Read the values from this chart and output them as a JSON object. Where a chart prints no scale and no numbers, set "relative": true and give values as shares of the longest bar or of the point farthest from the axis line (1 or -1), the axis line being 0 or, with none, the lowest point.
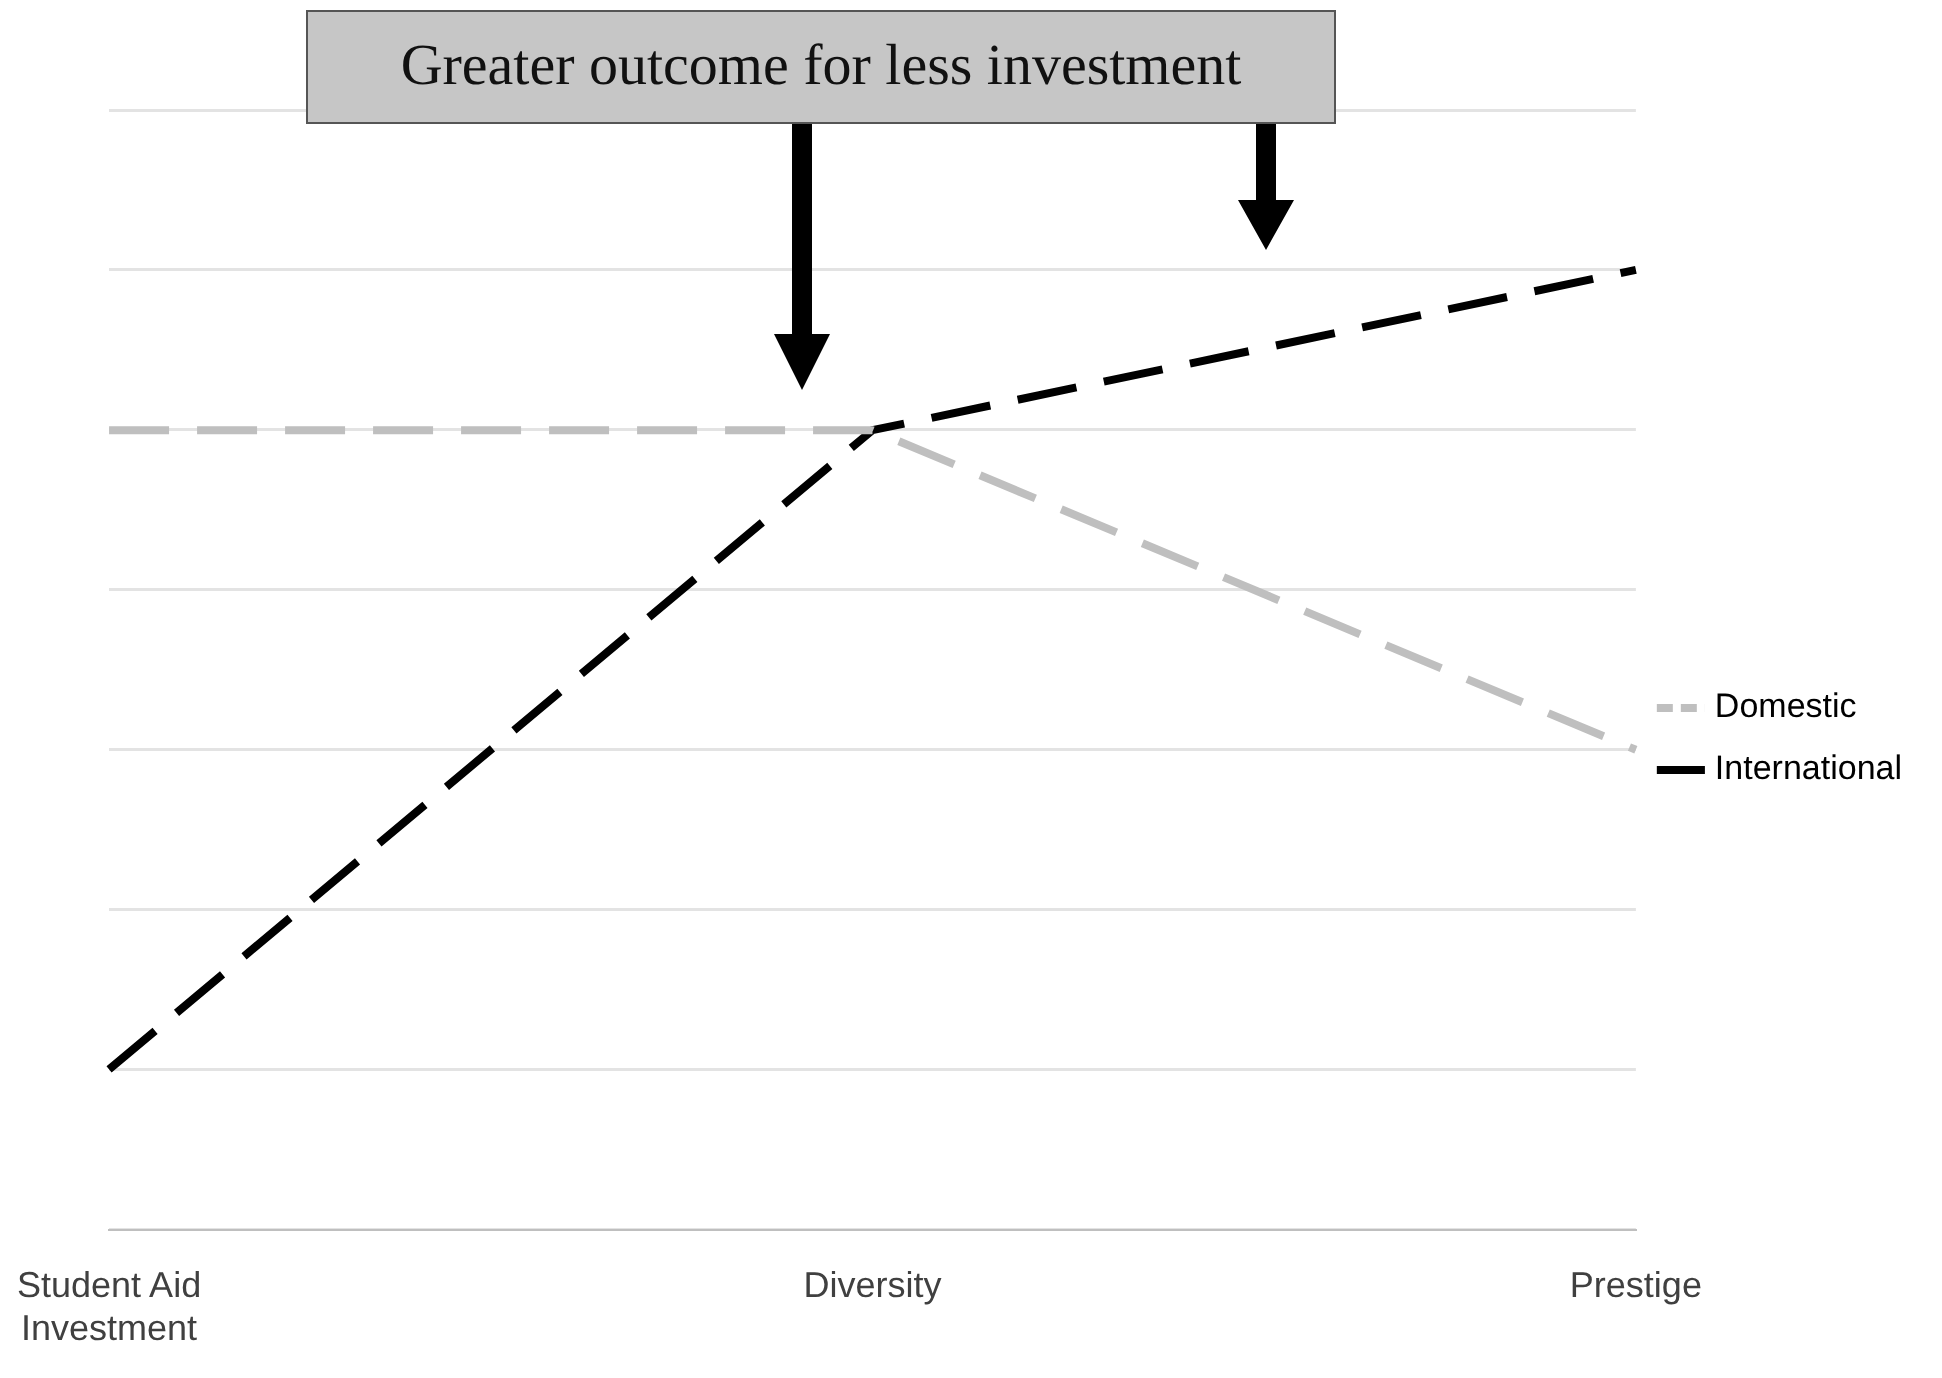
{
  "chart_data": {
    "type": "line",
    "relative": true,
    "categories": [
      "Student Aid Investment",
      "Diversity",
      "Prestige"
    ],
    "series": [
      {
        "name": "Domestic",
        "color": "#bfbfbf",
        "values": [
          0.833,
          0.833,
          0.5
        ],
        "line_style": "dashed"
      },
      {
        "name": "International",
        "color": "#000000",
        "values": [
          0.167,
          0.833,
          1
        ],
        "line_style": "dashed"
      }
    ],
    "grid": "y",
    "legend": "right",
    "marker": "none",
    "annotations": [
      "Greater outcome for less investment"
    ]
  }
}
